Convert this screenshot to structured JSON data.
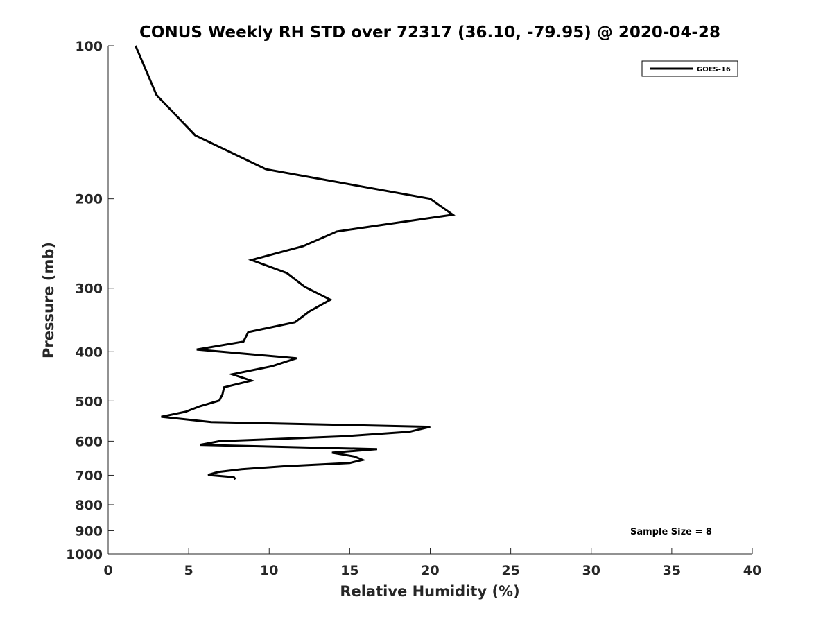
{
  "chart_data": {
    "type": "line",
    "title": "CONUS Weekly RH STD over 72317 (36.10, -79.95) @ 2020-04-28",
    "xlabel": "Relative Humidity (%)",
    "ylabel": "Pressure (mb)",
    "xlim": [
      0,
      40
    ],
    "ylim": [
      100,
      1000
    ],
    "y_scale": "log",
    "y_reversed": true,
    "x_ticks": [
      0,
      5,
      10,
      15,
      20,
      25,
      30,
      35,
      40
    ],
    "y_ticks": [
      100,
      200,
      300,
      400,
      500,
      600,
      700,
      800,
      900,
      1000
    ],
    "grid": false,
    "legend_position": "top-right",
    "annotation": "Sample Size = 8",
    "series": [
      {
        "name": "GOES-16",
        "color": "#000000",
        "points": [
          [
            1.7,
            100
          ],
          [
            3.0,
            125
          ],
          [
            5.4,
            150
          ],
          [
            9.8,
            175
          ],
          [
            20.0,
            200
          ],
          [
            21.4,
            215
          ],
          [
            14.2,
            232
          ],
          [
            12.1,
            248
          ],
          [
            8.9,
            264
          ],
          [
            11.1,
            280
          ],
          [
            12.2,
            298
          ],
          [
            13.8,
            316
          ],
          [
            12.5,
            333
          ],
          [
            11.6,
            350
          ],
          [
            8.7,
            366
          ],
          [
            8.4,
            382
          ],
          [
            5.5,
            396
          ],
          [
            11.7,
            412
          ],
          [
            10.2,
            427
          ],
          [
            7.7,
            443
          ],
          [
            8.9,
            456
          ],
          [
            7.2,
            470
          ],
          [
            7.1,
            485
          ],
          [
            6.9,
            499
          ],
          [
            5.7,
            512
          ],
          [
            4.8,
            525
          ],
          [
            3.3,
            537
          ],
          [
            6.4,
            550
          ],
          [
            20.0,
            562
          ],
          [
            18.7,
            575
          ],
          [
            14.6,
            587
          ],
          [
            6.9,
            600
          ],
          [
            5.7,
            610
          ],
          [
            16.7,
            622
          ],
          [
            13.9,
            632
          ],
          [
            15.3,
            643
          ],
          [
            15.8,
            653
          ],
          [
            15.0,
            662
          ],
          [
            10.9,
            672
          ],
          [
            8.3,
            681
          ],
          [
            6.8,
            690
          ],
          [
            6.2,
            699
          ],
          [
            7.8,
            706
          ],
          [
            7.9,
            713
          ]
        ]
      }
    ]
  }
}
